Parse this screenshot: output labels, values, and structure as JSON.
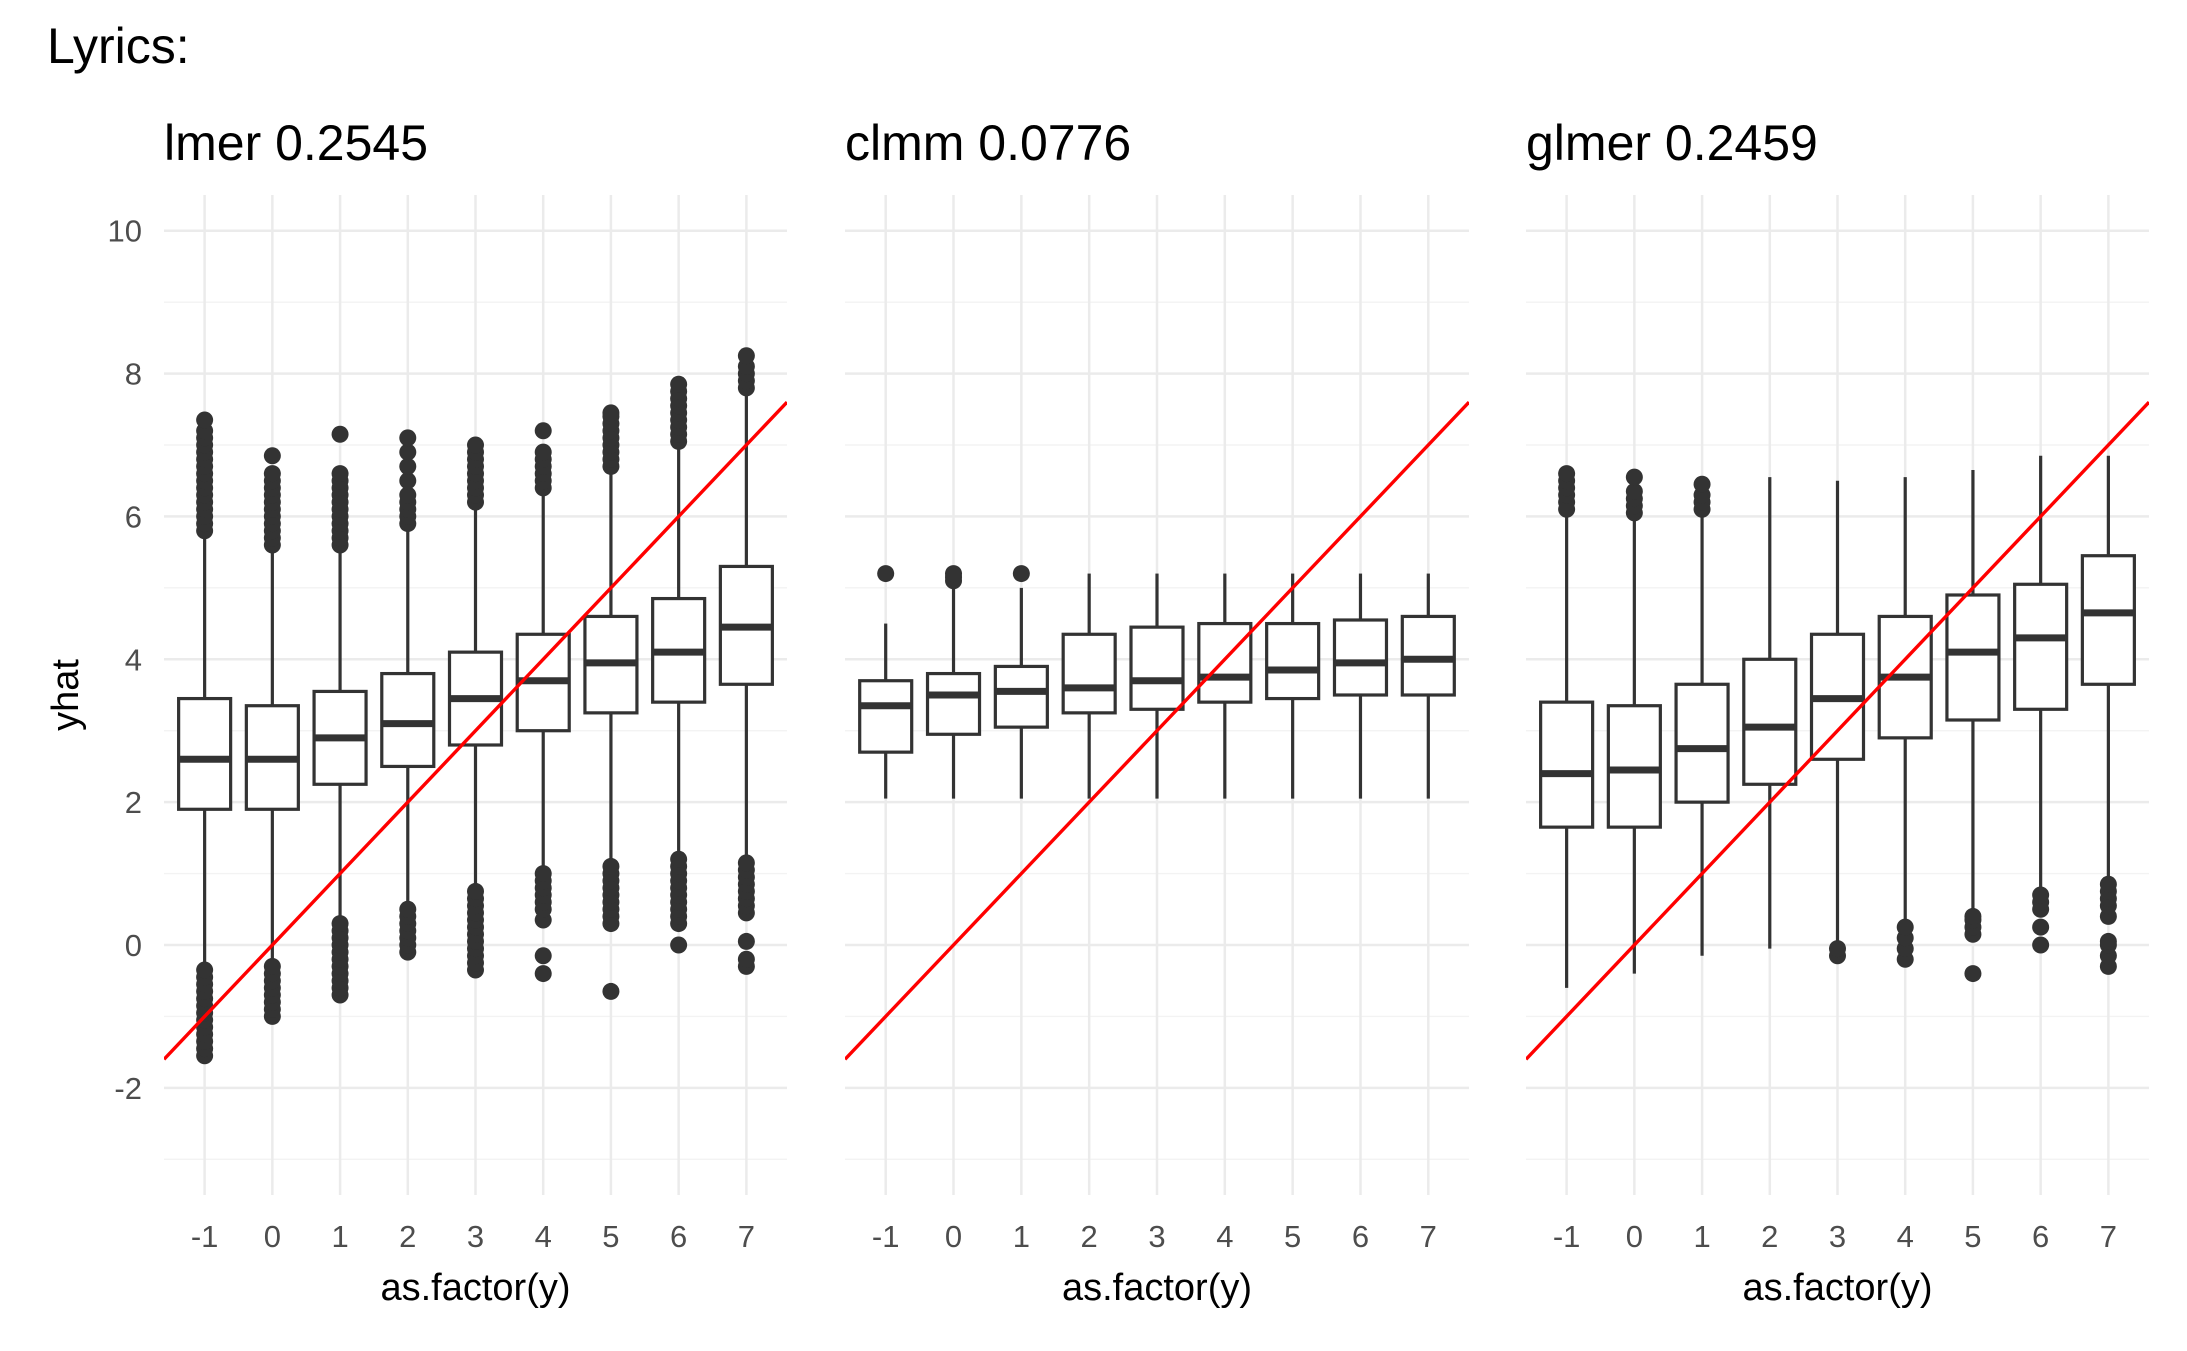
{
  "figure": {
    "title": "Lyrics:",
    "colors": {
      "box_stroke": "#333333",
      "reference_line": "#ff0000",
      "grid": "#ebebeb",
      "background": "#ffffff"
    }
  },
  "chart_data": [
    {
      "type": "boxplot",
      "title": "lmer 0.2545",
      "xlabel": "as.factor(y)",
      "ylabel": "yhat",
      "categories": [
        "-1",
        "0",
        "1",
        "2",
        "3",
        "4",
        "5",
        "6",
        "7"
      ],
      "ylim": [
        -3.5,
        10.5
      ],
      "yticks": [
        -2,
        0,
        2,
        4,
        6,
        8,
        10
      ],
      "grid": true,
      "reference_line": {
        "slope": 1,
        "intercept": 0,
        "color": "#ff0000"
      },
      "boxes": [
        {
          "category": "-1",
          "whisker_low": -0.3,
          "q1": 1.9,
          "median": 2.6,
          "q3": 3.45,
          "whisker_high": 5.7,
          "outliers": [
            -1.55,
            -1.45,
            -1.35,
            -1.25,
            -1.15,
            -1.05,
            -0.95,
            -0.85,
            -0.75,
            -0.65,
            -0.55,
            -0.45,
            -0.35,
            5.8,
            5.9,
            6.0,
            6.1,
            6.2,
            6.3,
            6.4,
            6.5,
            6.6,
            6.7,
            6.8,
            6.9,
            7.0,
            7.1,
            7.2,
            7.35
          ]
        },
        {
          "category": "0",
          "whisker_low": -0.25,
          "q1": 1.9,
          "median": 2.6,
          "q3": 3.35,
          "whisker_high": 5.5,
          "outliers": [
            -1.0,
            -0.9,
            -0.8,
            -0.7,
            -0.6,
            -0.5,
            -0.4,
            -0.3,
            5.6,
            5.7,
            5.8,
            5.9,
            6.0,
            6.1,
            6.2,
            6.3,
            6.4,
            6.5,
            6.6,
            6.85
          ]
        },
        {
          "category": "1",
          "whisker_low": 0.3,
          "q1": 2.25,
          "median": 2.9,
          "q3": 3.55,
          "whisker_high": 5.5,
          "outliers": [
            -0.7,
            -0.6,
            -0.5,
            -0.4,
            -0.3,
            -0.2,
            -0.1,
            0.0,
            0.1,
            0.2,
            0.3,
            5.6,
            5.7,
            5.8,
            5.9,
            6.0,
            6.1,
            6.2,
            6.3,
            6.4,
            6.5,
            6.6,
            7.15
          ]
        },
        {
          "category": "2",
          "whisker_low": 0.55,
          "q1": 2.5,
          "median": 3.1,
          "q3": 3.8,
          "whisker_high": 5.8,
          "outliers": [
            -0.1,
            0.0,
            0.1,
            0.2,
            0.3,
            0.4,
            0.5,
            5.9,
            6.0,
            6.1,
            6.2,
            6.3,
            6.5,
            6.7,
            6.9,
            7.1
          ]
        },
        {
          "category": "3",
          "whisker_low": 0.8,
          "q1": 2.8,
          "median": 3.45,
          "q3": 4.1,
          "whisker_high": 6.1,
          "outliers": [
            -0.35,
            -0.25,
            -0.15,
            -0.05,
            0.05,
            0.15,
            0.25,
            0.35,
            0.45,
            0.55,
            0.65,
            0.75,
            6.2,
            6.3,
            6.4,
            6.5,
            6.6,
            6.7,
            6.8,
            6.9,
            7.0
          ]
        },
        {
          "category": "4",
          "whisker_low": 1.0,
          "q1": 3.0,
          "median": 3.7,
          "q3": 4.35,
          "whisker_high": 6.3,
          "outliers": [
            -0.4,
            -0.15,
            0.35,
            0.5,
            0.6,
            0.7,
            0.8,
            0.9,
            1.0,
            6.4,
            6.5,
            6.6,
            6.7,
            6.8,
            6.9,
            7.2
          ]
        },
        {
          "category": "5",
          "whisker_low": 1.2,
          "q1": 3.25,
          "median": 3.95,
          "q3": 4.6,
          "whisker_high": 6.65,
          "outliers": [
            -0.65,
            0.3,
            0.4,
            0.5,
            0.6,
            0.7,
            0.8,
            0.9,
            1.0,
            1.1,
            6.7,
            6.8,
            6.9,
            7.0,
            7.1,
            7.2,
            7.3,
            7.4,
            7.45
          ]
        },
        {
          "category": "6",
          "whisker_low": 1.25,
          "q1": 3.4,
          "median": 4.1,
          "q3": 4.85,
          "whisker_high": 7.0,
          "outliers": [
            0.0,
            0.3,
            0.4,
            0.5,
            0.6,
            0.7,
            0.8,
            0.9,
            1.0,
            1.1,
            1.2,
            7.05,
            7.15,
            7.25,
            7.35,
            7.45,
            7.55,
            7.65,
            7.75,
            7.85
          ]
        },
        {
          "category": "7",
          "whisker_low": 1.2,
          "q1": 3.65,
          "median": 4.45,
          "q3": 5.3,
          "whisker_high": 7.7,
          "outliers": [
            -0.3,
            -0.2,
            0.05,
            0.45,
            0.55,
            0.65,
            0.75,
            0.85,
            0.95,
            1.05,
            1.15,
            7.8,
            7.9,
            8.0,
            8.1,
            8.25
          ]
        }
      ]
    },
    {
      "type": "boxplot",
      "title": "clmm 0.0776",
      "xlabel": "as.factor(y)",
      "ylabel": "",
      "categories": [
        "-1",
        "0",
        "1",
        "2",
        "3",
        "4",
        "5",
        "6",
        "7"
      ],
      "ylim": [
        -3.5,
        10.5
      ],
      "yticks": [
        -2,
        0,
        2,
        4,
        6,
        8,
        10
      ],
      "grid": true,
      "reference_line": {
        "slope": 1,
        "intercept": 0,
        "color": "#ff0000"
      },
      "boxes": [
        {
          "category": "-1",
          "whisker_low": 2.05,
          "q1": 2.7,
          "median": 3.35,
          "q3": 3.7,
          "whisker_high": 4.5,
          "outliers": [
            5.2
          ]
        },
        {
          "category": "0",
          "whisker_low": 2.05,
          "q1": 2.95,
          "median": 3.5,
          "q3": 3.8,
          "whisker_high": 5.05,
          "outliers": [
            5.1,
            5.15,
            5.2
          ]
        },
        {
          "category": "1",
          "whisker_low": 2.05,
          "q1": 3.05,
          "median": 3.55,
          "q3": 3.9,
          "whisker_high": 5.0,
          "outliers": [
            5.2
          ]
        },
        {
          "category": "2",
          "whisker_low": 2.05,
          "q1": 3.25,
          "median": 3.6,
          "q3": 4.35,
          "whisker_high": 5.2,
          "outliers": []
        },
        {
          "category": "3",
          "whisker_low": 2.05,
          "q1": 3.3,
          "median": 3.7,
          "q3": 4.45,
          "whisker_high": 5.2,
          "outliers": []
        },
        {
          "category": "4",
          "whisker_low": 2.05,
          "q1": 3.4,
          "median": 3.75,
          "q3": 4.5,
          "whisker_high": 5.2,
          "outliers": []
        },
        {
          "category": "5",
          "whisker_low": 2.05,
          "q1": 3.45,
          "median": 3.85,
          "q3": 4.5,
          "whisker_high": 5.2,
          "outliers": []
        },
        {
          "category": "6",
          "whisker_low": 2.05,
          "q1": 3.5,
          "median": 3.95,
          "q3": 4.55,
          "whisker_high": 5.2,
          "outliers": []
        },
        {
          "category": "7",
          "whisker_low": 2.05,
          "q1": 3.5,
          "median": 4.0,
          "q3": 4.6,
          "whisker_high": 5.2,
          "outliers": []
        }
      ]
    },
    {
      "type": "boxplot",
      "title": "glmer 0.2459",
      "xlabel": "as.factor(y)",
      "ylabel": "",
      "categories": [
        "-1",
        "0",
        "1",
        "2",
        "3",
        "4",
        "5",
        "6",
        "7"
      ],
      "ylim": [
        -3.5,
        10.5
      ],
      "yticks": [
        -2,
        0,
        2,
        4,
        6,
        8,
        10
      ],
      "grid": true,
      "reference_line": {
        "slope": 1,
        "intercept": 0,
        "color": "#ff0000"
      },
      "boxes": [
        {
          "category": "-1",
          "whisker_low": -0.6,
          "q1": 1.65,
          "median": 2.4,
          "q3": 3.4,
          "whisker_high": 6.05,
          "outliers": [
            6.1,
            6.2,
            6.3,
            6.4,
            6.5,
            6.6
          ]
        },
        {
          "category": "0",
          "whisker_low": -0.4,
          "q1": 1.65,
          "median": 2.45,
          "q3": 3.35,
          "whisker_high": 6.0,
          "outliers": [
            6.05,
            6.15,
            6.25,
            6.35,
            6.55
          ]
        },
        {
          "category": "1",
          "whisker_low": -0.15,
          "q1": 2.0,
          "median": 2.75,
          "q3": 3.65,
          "whisker_high": 6.05,
          "outliers": [
            6.1,
            6.2,
            6.3,
            6.45
          ]
        },
        {
          "category": "2",
          "whisker_low": -0.05,
          "q1": 2.25,
          "median": 3.05,
          "q3": 4.0,
          "whisker_high": 6.55,
          "outliers": []
        },
        {
          "category": "3",
          "whisker_low": -0.05,
          "q1": 2.6,
          "median": 3.45,
          "q3": 4.35,
          "whisker_high": 6.5,
          "outliers": [
            -0.15,
            -0.05
          ]
        },
        {
          "category": "4",
          "whisker_low": 0.35,
          "q1": 2.9,
          "median": 3.75,
          "q3": 4.6,
          "whisker_high": 6.55,
          "outliers": [
            -0.2,
            -0.05,
            0.1,
            0.25
          ]
        },
        {
          "category": "5",
          "whisker_low": 0.45,
          "q1": 3.15,
          "median": 4.1,
          "q3": 4.9,
          "whisker_high": 6.65,
          "outliers": [
            -0.4,
            0.15,
            0.25,
            0.35,
            0.4
          ]
        },
        {
          "category": "6",
          "whisker_low": 0.75,
          "q1": 3.3,
          "median": 4.3,
          "q3": 5.05,
          "whisker_high": 6.85,
          "outliers": [
            0.0,
            0.25,
            0.5,
            0.6,
            0.7
          ]
        },
        {
          "category": "7",
          "whisker_low": 0.95,
          "q1": 3.65,
          "median": 4.65,
          "q3": 5.45,
          "whisker_high": 6.85,
          "outliers": [
            -0.3,
            -0.15,
            0.0,
            0.05,
            0.4,
            0.55,
            0.65,
            0.75,
            0.85
          ]
        }
      ]
    }
  ]
}
